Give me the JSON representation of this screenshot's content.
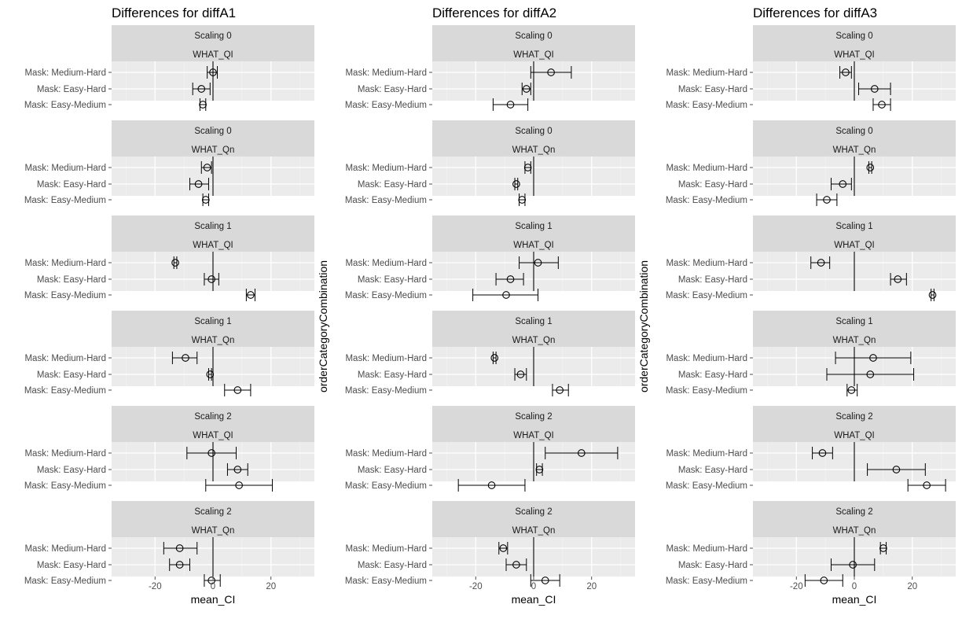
{
  "chart_data": {
    "type": "errorbar",
    "x_axis": {
      "label": "mean_CI",
      "range": [
        -35,
        35
      ],
      "ticks": [
        -20,
        0,
        20
      ],
      "tick_labels": [
        "-20",
        "0",
        "20"
      ],
      "reference_line": 0
    },
    "y_axis": {
      "label": "orderCategoryCombination",
      "categories": [
        "Mask: Medium-Hard",
        "Mask: Easy-Hard",
        "Mask: Easy-Medium"
      ]
    },
    "grid": true,
    "columns": [
      {
        "title": "Differences for diffA1",
        "show_y_axis_label": false,
        "panels": [
          {
            "strip1": "Scaling 0",
            "strip2": "WHAT_QI",
            "rows": [
              {
                "category": "Mask: Medium-Hard",
                "mean": 0,
                "lower": -2,
                "upper": 1.5
              },
              {
                "category": "Mask: Easy-Hard",
                "mean": -4,
                "lower": -7,
                "upper": -1
              },
              {
                "category": "Mask: Easy-Medium",
                "mean": -3.5,
                "lower": -4.5,
                "upper": -2.5
              }
            ]
          },
          {
            "strip1": "Scaling 0",
            "strip2": "WHAT_Qn",
            "rows": [
              {
                "category": "Mask: Medium-Hard",
                "mean": -2,
                "lower": -4,
                "upper": -0.5
              },
              {
                "category": "Mask: Easy-Hard",
                "mean": -5,
                "lower": -8,
                "upper": -1.5
              },
              {
                "category": "Mask: Easy-Medium",
                "mean": -2.5,
                "lower": -3.5,
                "upper": -1.5
              }
            ]
          },
          {
            "strip1": "Scaling 1",
            "strip2": "WHAT_QI",
            "rows": [
              {
                "category": "Mask: Medium-Hard",
                "mean": -13,
                "lower": -13.5,
                "upper": -12.5
              },
              {
                "category": "Mask: Easy-Hard",
                "mean": -0.5,
                "lower": -3,
                "upper": 2
              },
              {
                "category": "Mask: Easy-Medium",
                "mean": 13,
                "lower": 11.5,
                "upper": 14.5
              }
            ]
          },
          {
            "strip1": "Scaling 1",
            "strip2": "WHAT_Qn",
            "rows": [
              {
                "category": "Mask: Medium-Hard",
                "mean": -9.5,
                "lower": -14,
                "upper": -5.5
              },
              {
                "category": "Mask: Easy-Hard",
                "mean": -1,
                "lower": -1.5,
                "upper": -0.5
              },
              {
                "category": "Mask: Easy-Medium",
                "mean": 8.5,
                "lower": 4,
                "upper": 13
              }
            ]
          },
          {
            "strip1": "Scaling 2",
            "strip2": "WHAT_QI",
            "rows": [
              {
                "category": "Mask: Medium-Hard",
                "mean": -0.5,
                "lower": -9,
                "upper": 8
              },
              {
                "category": "Mask: Easy-Hard",
                "mean": 8.5,
                "lower": 5,
                "upper": 12
              },
              {
                "category": "Mask: Easy-Medium",
                "mean": 9,
                "lower": -2.5,
                "upper": 20.5
              }
            ]
          },
          {
            "strip1": "Scaling 2",
            "strip2": "WHAT_Qn",
            "rows": [
              {
                "category": "Mask: Medium-Hard",
                "mean": -11.5,
                "lower": -17,
                "upper": -5.5
              },
              {
                "category": "Mask: Easy-Hard",
                "mean": -11.5,
                "lower": -15,
                "upper": -8
              },
              {
                "category": "Mask: Easy-Medium",
                "mean": -0.5,
                "lower": -3,
                "upper": 2.5
              }
            ]
          }
        ]
      },
      {
        "title": "Differences for diffA2",
        "show_y_axis_label": true,
        "panels": [
          {
            "strip1": "Scaling 0",
            "strip2": "WHAT_QI",
            "rows": [
              {
                "category": "Mask: Medium-Hard",
                "mean": 6,
                "lower": -1,
                "upper": 13
              },
              {
                "category": "Mask: Easy-Hard",
                "mean": -2.5,
                "lower": -4,
                "upper": -1
              },
              {
                "category": "Mask: Easy-Medium",
                "mean": -8,
                "lower": -14,
                "upper": -2
              }
            ]
          },
          {
            "strip1": "Scaling 0",
            "strip2": "WHAT_Qn",
            "rows": [
              {
                "category": "Mask: Medium-Hard",
                "mean": -2,
                "lower": -3,
                "upper": -1
              },
              {
                "category": "Mask: Easy-Hard",
                "mean": -6,
                "lower": -6.5,
                "upper": -5.5
              },
              {
                "category": "Mask: Easy-Medium",
                "mean": -4,
                "lower": -5,
                "upper": -3
              }
            ]
          },
          {
            "strip1": "Scaling 1",
            "strip2": "WHAT_QI",
            "rows": [
              {
                "category": "Mask: Medium-Hard",
                "mean": 1.5,
                "lower": -5,
                "upper": 8.5
              },
              {
                "category": "Mask: Easy-Hard",
                "mean": -8,
                "lower": -13,
                "upper": -3.5
              },
              {
                "category": "Mask: Easy-Medium",
                "mean": -9.5,
                "lower": -21,
                "upper": 1.5
              }
            ]
          },
          {
            "strip1": "Scaling 1",
            "strip2": "WHAT_Qn",
            "rows": [
              {
                "category": "Mask: Medium-Hard",
                "mean": -13.5,
                "lower": -14,
                "upper": -13
              },
              {
                "category": "Mask: Easy-Hard",
                "mean": -4.5,
                "lower": -6.5,
                "upper": -2.5
              },
              {
                "category": "Mask: Easy-Medium",
                "mean": 9,
                "lower": 6.5,
                "upper": 12
              }
            ]
          },
          {
            "strip1": "Scaling 2",
            "strip2": "WHAT_QI",
            "rows": [
              {
                "category": "Mask: Medium-Hard",
                "mean": 16.5,
                "lower": 4,
                "upper": 29
              },
              {
                "category": "Mask: Easy-Hard",
                "mean": 2,
                "lower": 1,
                "upper": 3
              },
              {
                "category": "Mask: Easy-Medium",
                "mean": -14.5,
                "lower": -26,
                "upper": -3
              }
            ]
          },
          {
            "strip1": "Scaling 2",
            "strip2": "WHAT_Qn",
            "rows": [
              {
                "category": "Mask: Medium-Hard",
                "mean": -10.5,
                "lower": -12,
                "upper": -9
              },
              {
                "category": "Mask: Easy-Hard",
                "mean": -6,
                "lower": -9.5,
                "upper": -2.5
              },
              {
                "category": "Mask: Easy-Medium",
                "mean": 4,
                "lower": -1,
                "upper": 9
              }
            ]
          }
        ]
      },
      {
        "title": "Differences for diffA3",
        "show_y_axis_label": true,
        "panels": [
          {
            "strip1": "Scaling 0",
            "strip2": "WHAT_QI",
            "rows": [
              {
                "category": "Mask: Medium-Hard",
                "mean": -3,
                "lower": -5,
                "upper": -1
              },
              {
                "category": "Mask: Easy-Hard",
                "mean": 7,
                "lower": 1.5,
                "upper": 12.5
              },
              {
                "category": "Mask: Easy-Medium",
                "mean": 9.5,
                "lower": 6.5,
                "upper": 12.5
              }
            ]
          },
          {
            "strip1": "Scaling 0",
            "strip2": "WHAT_Qn",
            "rows": [
              {
                "category": "Mask: Medium-Hard",
                "mean": 5.5,
                "lower": 5,
                "upper": 6
              },
              {
                "category": "Mask: Easy-Hard",
                "mean": -4,
                "lower": -8,
                "upper": -1
              },
              {
                "category": "Mask: Easy-Medium",
                "mean": -9.5,
                "lower": -13,
                "upper": -6
              }
            ]
          },
          {
            "strip1": "Scaling 1",
            "strip2": "WHAT_QI",
            "rows": [
              {
                "category": "Mask: Medium-Hard",
                "mean": -11.5,
                "lower": -15,
                "upper": -8.5
              },
              {
                "category": "Mask: Easy-Hard",
                "mean": 15,
                "lower": 12.5,
                "upper": 18
              },
              {
                "category": "Mask: Easy-Medium",
                "mean": 27,
                "lower": 26.5,
                "upper": 27.5
              }
            ]
          },
          {
            "strip1": "Scaling 1",
            "strip2": "WHAT_Qn",
            "rows": [
              {
                "category": "Mask: Medium-Hard",
                "mean": 6.5,
                "lower": -6.5,
                "upper": 19.5
              },
              {
                "category": "Mask: Easy-Hard",
                "mean": 5.5,
                "lower": -9.5,
                "upper": 20.5
              },
              {
                "category": "Mask: Easy-Medium",
                "mean": -1,
                "lower": -2.5,
                "upper": 1
              }
            ]
          },
          {
            "strip1": "Scaling 2",
            "strip2": "WHAT_QI",
            "rows": [
              {
                "category": "Mask: Medium-Hard",
                "mean": -11,
                "lower": -14.5,
                "upper": -7.5
              },
              {
                "category": "Mask: Easy-Hard",
                "mean": 14.5,
                "lower": 4.5,
                "upper": 24.5
              },
              {
                "category": "Mask: Easy-Medium",
                "mean": 25,
                "lower": 18.5,
                "upper": 31.5
              }
            ]
          },
          {
            "strip1": "Scaling 2",
            "strip2": "WHAT_Qn",
            "rows": [
              {
                "category": "Mask: Medium-Hard",
                "mean": 10,
                "lower": 9,
                "upper": 11
              },
              {
                "category": "Mask: Easy-Hard",
                "mean": -0.5,
                "lower": -8,
                "upper": 7
              },
              {
                "category": "Mask: Easy-Medium",
                "mean": -10.5,
                "lower": -17,
                "upper": -4
              }
            ]
          }
        ]
      }
    ]
  }
}
